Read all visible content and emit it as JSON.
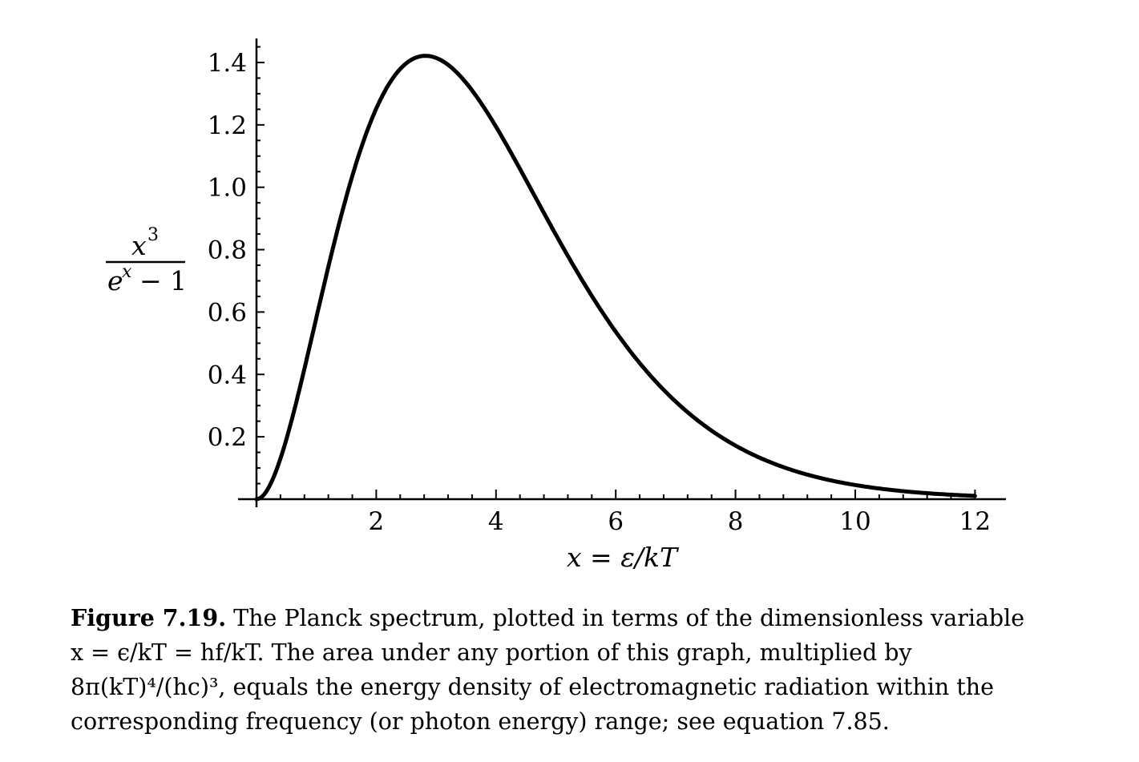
{
  "chart_data": {
    "type": "line",
    "function": "x^3/(e^x - 1)",
    "x": [
      0.05,
      0.5,
      1.0,
      1.5,
      2.0,
      2.5,
      2.82,
      3.0,
      3.5,
      4.0,
      4.5,
      5.0,
      5.5,
      6.0,
      6.5,
      7.0,
      7.5,
      8.0,
      8.5,
      9.0,
      9.5,
      10.0,
      10.5,
      11.0,
      11.5,
      12.0
    ],
    "y": [
      0.0024,
      0.193,
      0.582,
      0.966,
      1.252,
      1.404,
      1.421,
      1.419,
      1.345,
      1.22,
      1.069,
      0.908,
      0.754,
      0.6,
      0.41,
      0.3,
      0.265,
      0.172,
      0.125,
      0.09,
      0.068,
      0.045,
      0.035,
      0.022,
      0.016,
      0.011
    ],
    "xlim": [
      0,
      12.5
    ],
    "ylim": [
      0,
      1.45
    ],
    "xticks": [
      "2",
      "4",
      "6",
      "8",
      "10",
      "12"
    ],
    "yticks": [
      "0.2",
      "0.4",
      "0.6",
      "0.8",
      "1.0",
      "1.2",
      "1.4"
    ],
    "xlabel": "x = ε/kT",
    "ylabel": {
      "numerator": "x",
      "numerator_exponent": "3",
      "denominator": "e",
      "denominator_exponent": "x",
      "denominator_tail": "− 1"
    },
    "grid": false,
    "line_color": "#000000"
  },
  "caption": {
    "label": "Figure 7.19.",
    "lines": [
      " The Planck spectrum, plotted in terms of the dimensionless variable",
      "x = ϵ/kT = hf/kT.  The area under any portion of this graph, multiplied by",
      "8π(kT)⁴/(hc)³, equals the energy density of electromagnetic radiation within the",
      "corresponding frequency (or photon energy) range; see equation 7.85."
    ]
  }
}
